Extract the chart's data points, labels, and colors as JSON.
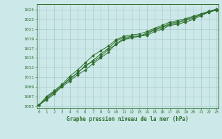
{
  "title": "Graphe pression niveau de la mer (hPa)",
  "background_color": "#cce8e8",
  "grid_color": "#aacccc",
  "line_color": "#2d6e2d",
  "x_ticks": [
    0,
    1,
    2,
    3,
    4,
    5,
    6,
    7,
    8,
    9,
    10,
    11,
    12,
    13,
    14,
    15,
    16,
    17,
    18,
    19,
    20,
    21,
    22,
    23
  ],
  "y_ticks": [
    1005,
    1007,
    1009,
    1011,
    1013,
    1015,
    1017,
    1019,
    1021,
    1023,
    1025
  ],
  "ylim": [
    1004.5,
    1026.2
  ],
  "xlim": [
    -0.3,
    23.3
  ],
  "series": [
    [
      1005.2,
      1006.8,
      1008.0,
      1009.3,
      1010.5,
      1012.0,
      1013.2,
      1014.5,
      1015.8,
      1017.0,
      1018.5,
      1019.3,
      1019.5,
      1019.6,
      1019.7,
      1020.5,
      1021.0,
      1021.8,
      1022.0,
      1022.5,
      1023.0,
      1023.8,
      1024.5,
      1025.0
    ],
    [
      1005.2,
      1006.5,
      1007.8,
      1009.0,
      1010.2,
      1011.5,
      1012.5,
      1013.8,
      1015.0,
      1016.2,
      1018.0,
      1019.0,
      1019.3,
      1019.5,
      1020.0,
      1020.8,
      1021.3,
      1022.0,
      1022.3,
      1022.8,
      1023.3,
      1024.0,
      1024.6,
      1024.9
    ],
    [
      1005.2,
      1006.3,
      1007.5,
      1009.2,
      1010.8,
      1011.8,
      1013.5,
      1014.2,
      1015.3,
      1016.8,
      1017.8,
      1018.8,
      1019.2,
      1019.5,
      1020.2,
      1021.0,
      1021.5,
      1022.2,
      1022.5,
      1023.0,
      1023.5,
      1024.0,
      1024.7,
      1025.0
    ],
    [
      1005.2,
      1007.0,
      1008.2,
      1009.5,
      1011.2,
      1012.5,
      1014.0,
      1015.5,
      1016.5,
      1017.5,
      1018.8,
      1019.5,
      1019.8,
      1020.0,
      1020.5,
      1021.2,
      1021.8,
      1022.5,
      1022.8,
      1023.2,
      1023.7,
      1024.2,
      1024.7,
      1025.2
    ]
  ]
}
